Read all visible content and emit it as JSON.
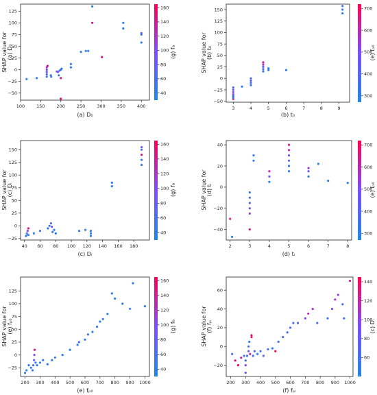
{
  "chart_data": [
    {
      "type": "scatter",
      "panel": "a",
      "xlabel": "(a) D₀",
      "ylabel_line1": "SHAP value for",
      "ylabel_line2": "(a) D₀",
      "xlim": [
        100,
        420
      ],
      "ylim": [
        -65,
        140
      ],
      "xticks": [
        100,
        150,
        200,
        250,
        300,
        350,
        400
      ],
      "yticks": [
        -50,
        -25,
        0,
        25,
        50,
        75,
        100,
        125
      ],
      "colorbar": {
        "label": "(g) f₉",
        "min": 30,
        "max": 165,
        "ticks": [
          40,
          60,
          80,
          100,
          120,
          140,
          160
        ]
      },
      "points": [
        [
          115,
          -20,
          40
        ],
        [
          140,
          -18,
          45
        ],
        [
          165,
          -15,
          50
        ],
        [
          165,
          -10,
          60
        ],
        [
          165,
          -5,
          80
        ],
        [
          165,
          0,
          100
        ],
        [
          165,
          5,
          120
        ],
        [
          167,
          8,
          140
        ],
        [
          175,
          -12,
          45
        ],
        [
          176,
          -15,
          50
        ],
        [
          190,
          -4,
          90
        ],
        [
          193,
          -5,
          100
        ],
        [
          195,
          -12,
          45
        ],
        [
          197,
          -2,
          50
        ],
        [
          200,
          -18,
          140
        ],
        [
          200,
          -62,
          150
        ],
        [
          200,
          0,
          40
        ],
        [
          202,
          2,
          45
        ],
        [
          225,
          5,
          40
        ],
        [
          225,
          12,
          50
        ],
        [
          250,
          38,
          45
        ],
        [
          262,
          40,
          40
        ],
        [
          268,
          40,
          50
        ],
        [
          278,
          135,
          40
        ],
        [
          278,
          100,
          150
        ],
        [
          302,
          27,
          150
        ],
        [
          355,
          100,
          40
        ],
        [
          355,
          88,
          45
        ],
        [
          400,
          58,
          40
        ],
        [
          400,
          75,
          45
        ],
        [
          400,
          78,
          80
        ]
      ]
    },
    {
      "type": "scatter",
      "panel": "b",
      "xlabel": "(b) t₀",
      "ylabel_line1": "SHAP value for",
      "ylabel_line2": "(b) t₀",
      "xlim": [
        2.6,
        9.6
      ],
      "ylim": [
        -52,
        162
      ],
      "xticks": [
        3,
        4,
        5,
        6,
        7,
        8,
        9
      ],
      "yticks": [
        -50,
        -25,
        0,
        25,
        50,
        75,
        100,
        125,
        150
      ],
      "colorbar": {
        "label": "(e) fₚ₀",
        "min": 270,
        "max": 720,
        "ticks": [
          300,
          400,
          500,
          600,
          700
        ]
      },
      "points": [
        [
          3,
          -45,
          650
        ],
        [
          3,
          -40,
          600
        ],
        [
          3,
          -35,
          550
        ],
        [
          3,
          -30,
          500
        ],
        [
          3,
          -25,
          450
        ],
        [
          3,
          -20,
          400
        ],
        [
          3,
          -42,
          300
        ],
        [
          3,
          -38,
          320
        ],
        [
          3.5,
          -18,
          310
        ],
        [
          4,
          -15,
          330
        ],
        [
          4,
          -10,
          380
        ],
        [
          4,
          -5,
          420
        ],
        [
          4,
          0,
          350
        ],
        [
          4.7,
          15,
          330
        ],
        [
          4.7,
          20,
          380
        ],
        [
          4.7,
          25,
          450
        ],
        [
          4.7,
          30,
          550
        ],
        [
          4.7,
          35,
          650
        ],
        [
          5,
          18,
          330
        ],
        [
          5,
          22,
          310
        ],
        [
          6,
          18,
          300
        ],
        [
          9.2,
          142,
          300
        ],
        [
          9.2,
          150,
          320
        ],
        [
          9.2,
          158,
          340
        ]
      ]
    },
    {
      "type": "scatter",
      "panel": "c",
      "xlabel": "(c) Dᵢ",
      "ylabel_line1": "SHAP value for",
      "ylabel_line2": "(c) Dᵢ",
      "xlim": [
        35,
        200
      ],
      "ylim": [
        -28,
        168
      ],
      "xticks": [
        40,
        60,
        80,
        100,
        120,
        140,
        160,
        180
      ],
      "yticks": [
        -25,
        0,
        25,
        50,
        75,
        100,
        125,
        150
      ],
      "colorbar": {
        "label": "(g) f₉",
        "min": 30,
        "max": 165,
        "ticks": [
          40,
          60,
          80,
          100,
          120,
          140,
          160
        ]
      },
      "points": [
        [
          42,
          -20,
          40
        ],
        [
          43,
          -15,
          60
        ],
        [
          44,
          -10,
          100
        ],
        [
          45,
          -5,
          150
        ],
        [
          45,
          -18,
          45
        ],
        [
          52,
          -15,
          40
        ],
        [
          60,
          -10,
          45
        ],
        [
          70,
          -5,
          40
        ],
        [
          72,
          0,
          50
        ],
        [
          74,
          5,
          60
        ],
        [
          75,
          -2,
          100
        ],
        [
          76,
          -12,
          50
        ],
        [
          78,
          -8,
          45
        ],
        [
          80,
          -15,
          40
        ],
        [
          110,
          -10,
          45
        ],
        [
          118,
          -8,
          40
        ],
        [
          125,
          -20,
          40
        ],
        [
          125,
          -15,
          45
        ],
        [
          125,
          -10,
          50
        ],
        [
          152,
          85,
          40
        ],
        [
          152,
          78,
          45
        ],
        [
          190,
          120,
          45
        ],
        [
          190,
          130,
          50
        ],
        [
          190,
          140,
          150
        ],
        [
          190,
          150,
          60
        ],
        [
          190,
          155,
          80
        ]
      ]
    },
    {
      "type": "scatter",
      "panel": "d",
      "xlabel": "(d) tᵢ",
      "ylabel_line1": "SHAP value for",
      "ylabel_line2": "(d) tᵢ",
      "xlim": [
        1.8,
        8.2
      ],
      "ylim": [
        -50,
        44
      ],
      "xticks": [
        2,
        3,
        4,
        5,
        6,
        7,
        8
      ],
      "yticks": [
        -40,
        -20,
        0,
        20,
        40
      ],
      "colorbar": {
        "label": "(e) fₚ₀",
        "min": 270,
        "max": 720,
        "ticks": [
          300,
          400,
          500,
          600,
          700
        ]
      },
      "points": [
        [
          2,
          -30,
          650
        ],
        [
          2.1,
          -47,
          300
        ],
        [
          3,
          -40,
          650
        ],
        [
          3,
          -25,
          550
        ],
        [
          3,
          -20,
          450
        ],
        [
          3,
          -15,
          400
        ],
        [
          3,
          -10,
          350
        ],
        [
          3,
          -5,
          320
        ],
        [
          3.2,
          25,
          300
        ],
        [
          3.2,
          30,
          330
        ],
        [
          4,
          5,
          300
        ],
        [
          4,
          10,
          500
        ],
        [
          4,
          15,
          600
        ],
        [
          5,
          15,
          320
        ],
        [
          5,
          20,
          350
        ],
        [
          5,
          25,
          400
        ],
        [
          5,
          30,
          500
        ],
        [
          5,
          35,
          600
        ],
        [
          5,
          40,
          650
        ],
        [
          6,
          10,
          300
        ],
        [
          6,
          15,
          450
        ],
        [
          6,
          18,
          550
        ],
        [
          6.5,
          22,
          300
        ],
        [
          7,
          6,
          300
        ],
        [
          8,
          4,
          300
        ]
      ]
    },
    {
      "type": "scatter",
      "panel": "e",
      "xlabel": "(e) fₚ₀",
      "ylabel_line1": "SHAP value for",
      "ylabel_line2": "(e) fₚ₀",
      "xlim": [
        170,
        1030
      ],
      "ylim": [
        -42,
        152
      ],
      "xticks": [
        200,
        300,
        400,
        500,
        600,
        700,
        800,
        900,
        1000
      ],
      "yticks": [
        -25,
        0,
        25,
        50,
        75,
        100,
        125
      ],
      "colorbar": {
        "label": "(g) f₉",
        "min": 30,
        "max": 165,
        "ticks": [
          40,
          60,
          80,
          100,
          120,
          140,
          160
        ]
      },
      "points": [
        [
          200,
          -35,
          40
        ],
        [
          210,
          -30,
          45
        ],
        [
          225,
          -20,
          40
        ],
        [
          240,
          -25,
          45
        ],
        [
          250,
          -30,
          50
        ],
        [
          255,
          -20,
          60
        ],
        [
          260,
          -10,
          80
        ],
        [
          262,
          0,
          100
        ],
        [
          264,
          10,
          150
        ],
        [
          270,
          -15,
          45
        ],
        [
          280,
          -20,
          40
        ],
        [
          300,
          -15,
          45
        ],
        [
          320,
          -10,
          40
        ],
        [
          350,
          -18,
          45
        ],
        [
          380,
          -10,
          40
        ],
        [
          400,
          -5,
          45
        ],
        [
          450,
          0,
          40
        ],
        [
          500,
          10,
          45
        ],
        [
          550,
          20,
          40
        ],
        [
          560,
          25,
          45
        ],
        [
          600,
          30,
          40
        ],
        [
          620,
          40,
          45
        ],
        [
          650,
          45,
          40
        ],
        [
          680,
          55,
          45
        ],
        [
          700,
          65,
          40
        ],
        [
          720,
          70,
          50
        ],
        [
          750,
          80,
          40
        ],
        [
          780,
          120,
          45
        ],
        [
          800,
          110,
          40
        ],
        [
          850,
          100,
          45
        ],
        [
          900,
          90,
          40
        ],
        [
          920,
          140,
          45
        ],
        [
          1000,
          95,
          40
        ]
      ]
    },
    {
      "type": "scatter",
      "panel": "f",
      "xlabel": "(f) fₚᵢ",
      "ylabel_line1": "SHAP value for",
      "ylabel_line2": "(f) fₚᵢ",
      "xlim": [
        170,
        1020
      ],
      "ylim": [
        -32,
        74
      ],
      "xticks": [
        200,
        300,
        400,
        500,
        600,
        700,
        800,
        900,
        1000
      ],
      "yticks": [
        -20,
        0,
        20,
        40,
        60
      ],
      "colorbar": {
        "label": "(c) Dᵢ",
        "min": 40,
        "max": 145,
        "ticks": [
          60,
          80,
          100,
          120,
          140
        ]
      },
      "points": [
        [
          210,
          -8,
          60
        ],
        [
          230,
          -15,
          130
        ],
        [
          250,
          -20,
          140
        ],
        [
          270,
          -12,
          120
        ],
        [
          290,
          -10,
          50
        ],
        [
          300,
          -28,
          90
        ],
        [
          300,
          -20,
          100
        ],
        [
          300,
          -15,
          60
        ],
        [
          310,
          -10,
          70
        ],
        [
          320,
          -5,
          80
        ],
        [
          320,
          0,
          60
        ],
        [
          325,
          5,
          50
        ],
        [
          330,
          -8,
          120
        ],
        [
          340,
          10,
          140
        ],
        [
          340,
          12,
          130
        ],
        [
          350,
          -10,
          60
        ],
        [
          360,
          -5,
          70
        ],
        [
          380,
          -8,
          50
        ],
        [
          400,
          -5,
          60
        ],
        [
          420,
          -10,
          70
        ],
        [
          450,
          -3,
          60
        ],
        [
          480,
          -2,
          55
        ],
        [
          500,
          -5,
          140
        ],
        [
          520,
          5,
          60
        ],
        [
          550,
          10,
          70
        ],
        [
          580,
          15,
          60
        ],
        [
          600,
          20,
          70
        ],
        [
          620,
          25,
          60
        ],
        [
          650,
          25,
          70
        ],
        [
          700,
          30,
          100
        ],
        [
          720,
          35,
          120
        ],
        [
          750,
          40,
          110
        ],
        [
          780,
          25,
          70
        ],
        [
          850,
          30,
          60
        ],
        [
          880,
          40,
          90
        ],
        [
          900,
          50,
          110
        ],
        [
          920,
          55,
          100
        ],
        [
          950,
          45,
          70
        ],
        [
          960,
          30,
          60
        ],
        [
          1000,
          70,
          130
        ]
      ]
    }
  ]
}
